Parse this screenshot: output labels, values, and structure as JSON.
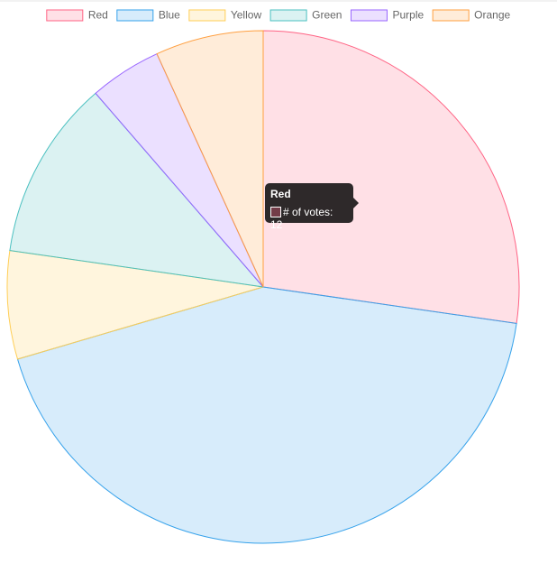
{
  "chart_data": {
    "type": "pie",
    "dataset_label": "# of votes",
    "categories": [
      "Red",
      "Blue",
      "Yellow",
      "Green",
      "Purple",
      "Orange"
    ],
    "values": [
      12,
      19,
      3,
      5,
      2,
      3
    ],
    "colors": [
      "#ff6384",
      "#36a2eb",
      "#ffce56",
      "#4bc0c0",
      "#9966ff",
      "#ff9f40"
    ],
    "legend": "top",
    "tooltip_index": 0
  }
}
